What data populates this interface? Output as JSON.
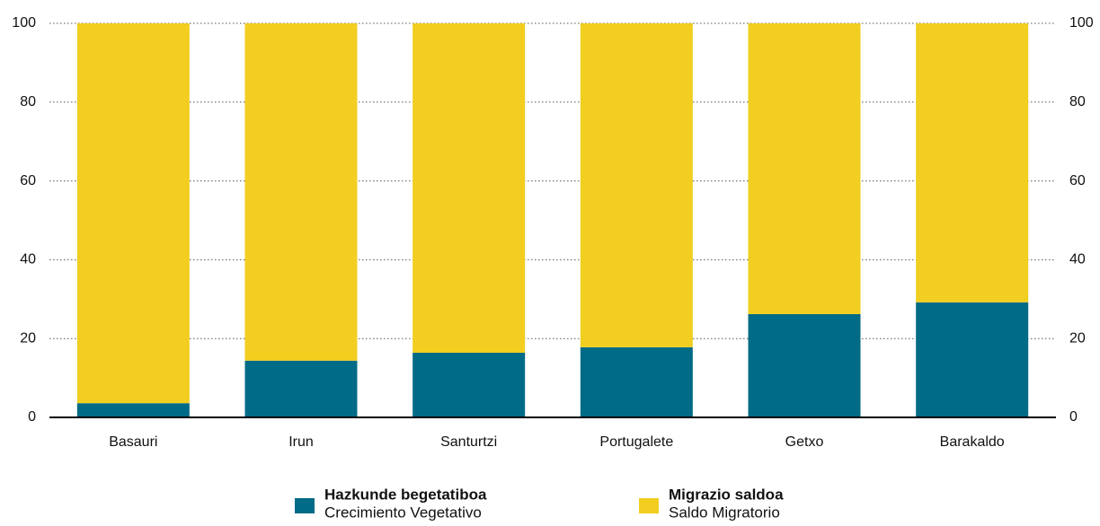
{
  "chart_data": {
    "type": "stacked_bar",
    "categories": [
      "Basauri",
      "Irun",
      "Santurtzi",
      "Portugalete",
      "Getxo",
      "Barakaldo"
    ],
    "series": [
      {
        "name": "Hazkunde begetatiboa",
        "legend_subtitle": "Crecimiento Vegetativo",
        "color": "#006b86",
        "values": [
          3.6,
          14.4,
          16.4,
          17.8,
          26.2,
          29.2
        ]
      },
      {
        "name": "Migrazio saldoa",
        "legend_subtitle": "Saldo Migratorio",
        "color": "#f1ce1f",
        "values": [
          96.4,
          85.6,
          83.6,
          82.2,
          73.8,
          70.8
        ]
      }
    ],
    "ylim": [
      0,
      100
    ],
    "yticks": [
      0,
      20,
      40,
      60,
      80,
      100
    ],
    "grid": true,
    "legend": "bottom"
  }
}
